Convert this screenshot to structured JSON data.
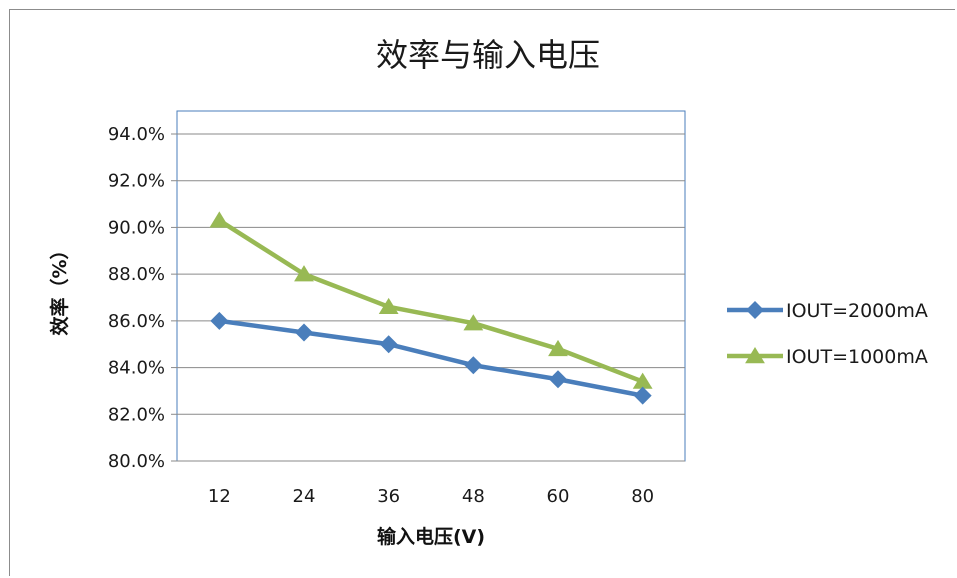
{
  "chart_data": {
    "type": "line",
    "title": "效率与输入电压",
    "xlabel": "输入电压(V)",
    "ylabel": "效率（%）",
    "categories": [
      "12",
      "24",
      "36",
      "48",
      "60",
      "80"
    ],
    "yticks": [
      "80.0%",
      "82.0%",
      "84.0%",
      "86.0%",
      "88.0%",
      "90.0%",
      "92.0%",
      "94.0%"
    ],
    "ylim": [
      80,
      94
    ],
    "grid": true,
    "legend_position": "right",
    "series": [
      {
        "name": "IOUT=2000mA",
        "values": [
          86.0,
          85.5,
          85.0,
          84.1,
          83.5,
          82.8
        ],
        "color": "#4a7ebb",
        "marker": "diamond"
      },
      {
        "name": "IOUT=1000mA",
        "values": [
          90.3,
          88.0,
          86.6,
          85.9,
          84.8,
          83.4
        ],
        "color": "#98b954",
        "marker": "triangle"
      }
    ]
  }
}
